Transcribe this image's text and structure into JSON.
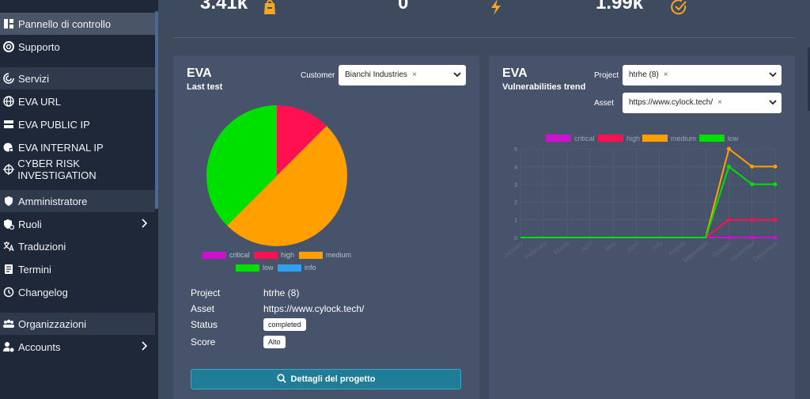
{
  "sidebar": {
    "items": [
      {
        "label": "Pannello di controllo",
        "icon": "dashboard-icon"
      },
      {
        "label": "Supporto",
        "icon": "lifebuoy-icon"
      },
      {
        "label": "Servizi",
        "icon": "services-icon"
      },
      {
        "label": "EVA URL",
        "icon": "globe-icon"
      },
      {
        "label": "EVA PUBLIC IP",
        "icon": "server-icon"
      },
      {
        "label": "EVA INTERNAL IP",
        "icon": "globe-lock-icon"
      },
      {
        "label": "CYBER RISK INVESTIGATION",
        "icon": "crosshair-icon"
      },
      {
        "label": "Amministratore",
        "icon": "shield-icon"
      },
      {
        "label": "Ruoli",
        "icon": "role-icon"
      },
      {
        "label": "Traduzioni",
        "icon": "translate-icon"
      },
      {
        "label": "Termini",
        "icon": "document-icon"
      },
      {
        "label": "Changelog",
        "icon": "history-icon"
      },
      {
        "label": "Organizzazioni",
        "icon": "people-icon"
      },
      {
        "label": "Accounts",
        "icon": "user-gear-icon"
      }
    ]
  },
  "stats": [
    {
      "value": "3.41k",
      "icon": "bag-icon",
      "color": "#f6a623"
    },
    {
      "value": "0",
      "icon": "bolt-icon",
      "color": "#f6a623"
    },
    {
      "value": "1.99k",
      "icon": "check-circle-icon",
      "color": "#f6a623"
    }
  ],
  "left_card": {
    "title": "EVA",
    "subtitle": "Last test",
    "customer_label": "Customer",
    "customer_value": "Bianchi Industries",
    "project_label": "Project",
    "project_value": "htrhe (8)",
    "asset_label": "Asset",
    "asset_value": "https://www.cylock.tech/",
    "status_label": "Status",
    "status_value": "completed",
    "score_label": "Score",
    "score_value": "Alto",
    "button_label": "Dettagli del progetto"
  },
  "right_card": {
    "title": "EVA",
    "subtitle": "Vulnerabilities trend",
    "project_label": "Project",
    "project_value": "htrhe (8)",
    "asset_label": "Asset",
    "asset_value": "https://www.cylock.tech/"
  },
  "legend_colors": {
    "critical": "#d010d0",
    "high": "#ff1050",
    "medium": "#ffa000",
    "low": "#00e000",
    "info": "#30a0f0"
  },
  "chart_data": [
    {
      "type": "pie",
      "categories": [
        "critical",
        "high",
        "medium",
        "low",
        "info"
      ],
      "values": [
        0,
        1,
        4,
        3,
        0
      ]
    },
    {
      "type": "line",
      "categories": [
        "January",
        "February",
        "March",
        "April",
        "May",
        "June",
        "July",
        "August",
        "September",
        "October",
        "November",
        "December"
      ],
      "ylim": [
        0,
        5
      ],
      "yticks": [
        "0",
        "1",
        "2",
        "3",
        "4",
        "5"
      ],
      "legend": "top",
      "series": [
        {
          "name": "critical",
          "values": [
            0,
            0,
            0,
            0,
            0,
            0,
            0,
            0,
            0,
            0,
            0,
            0
          ]
        },
        {
          "name": "high",
          "values": [
            0,
            0,
            0,
            0,
            0,
            0,
            0,
            0,
            0,
            1,
            1,
            1
          ]
        },
        {
          "name": "medium",
          "values": [
            0,
            0,
            0,
            0,
            0,
            0,
            0,
            0,
            0,
            5,
            4,
            4
          ]
        },
        {
          "name": "low",
          "values": [
            0,
            0,
            0,
            0,
            0,
            0,
            0,
            0,
            0,
            4,
            3,
            3
          ]
        }
      ]
    }
  ]
}
